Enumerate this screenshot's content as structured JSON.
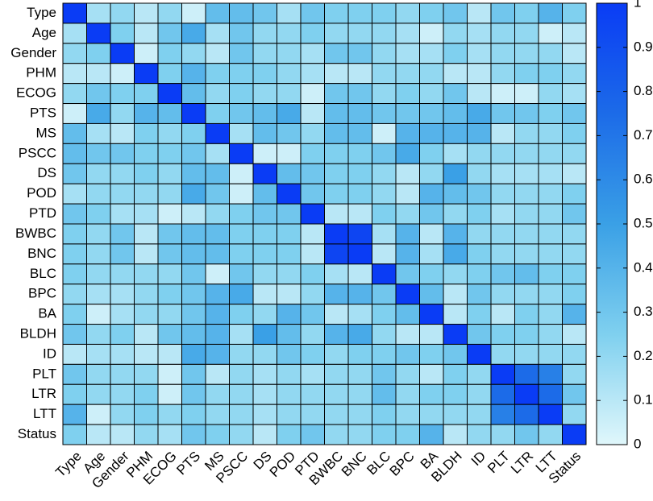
{
  "chart_data": {
    "type": "heatmap",
    "labels": [
      "Type",
      "Age",
      "Gender",
      "PHM",
      "ECOG",
      "PTS",
      "MS",
      "PSCC",
      "DS",
      "POD",
      "PTD",
      "BWBC",
      "BNC",
      "BLC",
      "BPC",
      "BA",
      "BLDH",
      "ID",
      "PLT",
      "LTR",
      "LTT",
      "Status"
    ],
    "values": [
      [
        1,
        0.15,
        0.2,
        0.1,
        0.2,
        0.05,
        0.35,
        0.35,
        0.3,
        0.15,
        0.3,
        0.25,
        0.25,
        0.25,
        0.2,
        0.25,
        0.3,
        0.1,
        0.3,
        0.25,
        0.4,
        0.25
      ],
      [
        0.15,
        1,
        0.25,
        0.1,
        0.3,
        0.45,
        0.15,
        0.3,
        0.2,
        0.2,
        0.25,
        0.2,
        0.2,
        0.2,
        0.15,
        0.05,
        0.2,
        0.15,
        0.2,
        0.2,
        0.05,
        0.1
      ],
      [
        0.2,
        0.25,
        1,
        0.05,
        0.25,
        0.2,
        0.1,
        0.3,
        0.2,
        0.2,
        0.15,
        0.3,
        0.3,
        0.2,
        0.15,
        0.15,
        0.25,
        0.15,
        0.2,
        0.2,
        0.2,
        0.1
      ],
      [
        0.1,
        0.1,
        0.05,
        1,
        0.25,
        0.4,
        0.25,
        0.25,
        0.25,
        0.2,
        0.15,
        0.1,
        0.1,
        0.2,
        0.2,
        0.2,
        0.1,
        0.1,
        0.2,
        0.25,
        0.25,
        0.2
      ],
      [
        0.2,
        0.3,
        0.25,
        0.25,
        1,
        0.35,
        0.2,
        0.25,
        0.2,
        0.2,
        0.05,
        0.3,
        0.3,
        0.2,
        0.25,
        0.2,
        0.3,
        0.1,
        0.05,
        0.05,
        0.2,
        0.15
      ],
      [
        0.05,
        0.45,
        0.2,
        0.4,
        0.35,
        1,
        0.25,
        0.3,
        0.35,
        0.45,
        0.1,
        0.35,
        0.35,
        0.3,
        0.3,
        0.3,
        0.35,
        0.45,
        0.3,
        0.3,
        0.25,
        0.3
      ],
      [
        0.35,
        0.15,
        0.1,
        0.25,
        0.2,
        0.25,
        1,
        0.15,
        0.35,
        0.3,
        0.2,
        0.35,
        0.35,
        0.05,
        0.4,
        0.4,
        0.4,
        0.4,
        0.1,
        0.2,
        0.2,
        0.25
      ],
      [
        0.35,
        0.3,
        0.3,
        0.25,
        0.25,
        0.3,
        0.15,
        1,
        0.05,
        0.05,
        0.25,
        0.25,
        0.25,
        0.3,
        0.45,
        0.25,
        0.15,
        0.2,
        0.2,
        0.2,
        0.2,
        0.2
      ],
      [
        0.3,
        0.2,
        0.2,
        0.25,
        0.2,
        0.35,
        0.35,
        0.05,
        1,
        0.35,
        0.3,
        0.25,
        0.25,
        0.2,
        0.1,
        0.2,
        0.5,
        0.2,
        0.15,
        0.15,
        0.15,
        0.1
      ],
      [
        0.15,
        0.2,
        0.2,
        0.2,
        0.2,
        0.45,
        0.3,
        0.05,
        0.35,
        1,
        0.3,
        0.25,
        0.25,
        0.2,
        0.1,
        0.4,
        0.35,
        0.3,
        0.2,
        0.2,
        0.2,
        0.25
      ],
      [
        0.3,
        0.25,
        0.15,
        0.15,
        0.05,
        0.1,
        0.2,
        0.25,
        0.3,
        0.3,
        1,
        0.1,
        0.1,
        0.25,
        0.2,
        0.3,
        0.2,
        0.25,
        0.15,
        0.2,
        0.2,
        0.3
      ],
      [
        0.25,
        0.2,
        0.3,
        0.1,
        0.3,
        0.35,
        0.35,
        0.25,
        0.25,
        0.25,
        0.1,
        1,
        0.95,
        0.15,
        0.4,
        0.1,
        0.4,
        0.2,
        0.2,
        0.2,
        0.2,
        0.2
      ],
      [
        0.25,
        0.2,
        0.3,
        0.1,
        0.3,
        0.35,
        0.35,
        0.25,
        0.25,
        0.25,
        0.1,
        0.95,
        1,
        0.1,
        0.4,
        0.15,
        0.45,
        0.25,
        0.2,
        0.2,
        0.2,
        0.2
      ],
      [
        0.25,
        0.2,
        0.2,
        0.2,
        0.2,
        0.3,
        0.05,
        0.3,
        0.2,
        0.2,
        0.25,
        0.15,
        0.1,
        1,
        0.3,
        0.25,
        0.2,
        0.25,
        0.3,
        0.35,
        0.25,
        0.25
      ],
      [
        0.2,
        0.15,
        0.15,
        0.2,
        0.25,
        0.3,
        0.4,
        0.45,
        0.1,
        0.1,
        0.2,
        0.4,
        0.4,
        0.3,
        1,
        0.35,
        0.1,
        0.3,
        0.2,
        0.2,
        0.2,
        0.25
      ],
      [
        0.25,
        0.05,
        0.15,
        0.2,
        0.2,
        0.3,
        0.4,
        0.25,
        0.2,
        0.4,
        0.3,
        0.1,
        0.15,
        0.25,
        0.35,
        1,
        0.1,
        0.25,
        0.1,
        0.25,
        0.2,
        0.4
      ],
      [
        0.3,
        0.2,
        0.25,
        0.1,
        0.3,
        0.35,
        0.4,
        0.15,
        0.5,
        0.35,
        0.2,
        0.4,
        0.45,
        0.2,
        0.1,
        0.1,
        1,
        0.3,
        0.25,
        0.25,
        0.2,
        0.1
      ],
      [
        0.1,
        0.15,
        0.15,
        0.1,
        0.1,
        0.45,
        0.4,
        0.2,
        0.2,
        0.3,
        0.25,
        0.2,
        0.25,
        0.25,
        0.3,
        0.25,
        0.3,
        1,
        0.2,
        0.2,
        0.2,
        0.2
      ],
      [
        0.3,
        0.2,
        0.2,
        0.2,
        0.05,
        0.3,
        0.1,
        0.2,
        0.15,
        0.2,
        0.15,
        0.2,
        0.2,
        0.3,
        0.2,
        0.1,
        0.25,
        0.2,
        1,
        0.75,
        0.65,
        0.2
      ],
      [
        0.25,
        0.2,
        0.2,
        0.25,
        0.05,
        0.3,
        0.2,
        0.2,
        0.15,
        0.2,
        0.2,
        0.2,
        0.2,
        0.35,
        0.2,
        0.25,
        0.25,
        0.2,
        0.75,
        1,
        0.75,
        0.3
      ],
      [
        0.4,
        0.05,
        0.2,
        0.25,
        0.2,
        0.25,
        0.2,
        0.2,
        0.15,
        0.2,
        0.2,
        0.2,
        0.2,
        0.25,
        0.2,
        0.2,
        0.2,
        0.2,
        0.65,
        0.75,
        1,
        0.2
      ],
      [
        0.25,
        0.1,
        0.1,
        0.2,
        0.15,
        0.3,
        0.25,
        0.2,
        0.1,
        0.25,
        0.3,
        0.2,
        0.2,
        0.25,
        0.25,
        0.4,
        0.1,
        0.2,
        0.2,
        0.3,
        0.2,
        1
      ]
    ],
    "zlim": [
      0,
      1
    ],
    "zticks": [
      0,
      0.1,
      0.2,
      0.3,
      0.4,
      0.5,
      0.6,
      0.7,
      0.8,
      0.9,
      1
    ],
    "colors": [
      "#e0f7fb",
      "#7fd0ef",
      "#3aa0e6",
      "#1c6be8",
      "#0a3cf5"
    ]
  }
}
